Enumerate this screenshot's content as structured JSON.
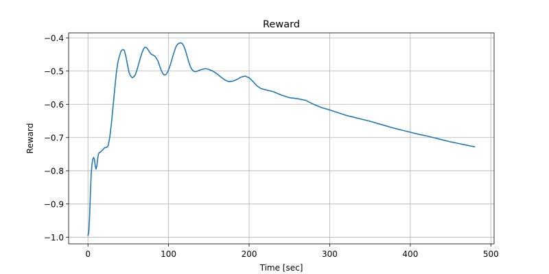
{
  "chart_data": {
    "type": "line",
    "title": "Reward",
    "xlabel": "Time [sec]",
    "ylabel": "Reward",
    "xlim": [
      -24,
      504
    ],
    "ylim": [
      -1.02,
      -0.385
    ],
    "xticks": [
      0,
      100,
      200,
      300,
      400,
      500
    ],
    "xtick_labels": [
      "0",
      "100",
      "200",
      "300",
      "400",
      "500"
    ],
    "yticks": [
      -1.0,
      -0.9,
      -0.8,
      -0.7,
      -0.6,
      -0.5,
      -0.4
    ],
    "ytick_labels": [
      "−1.0",
      "−0.9",
      "−0.8",
      "−0.7",
      "−0.6",
      "−0.5",
      "−0.4"
    ],
    "grid": true,
    "series": [
      {
        "color": "#1f77b4",
        "x": [
          0,
          1,
          2,
          3,
          4,
          5,
          6,
          7,
          8,
          9,
          10,
          11,
          12,
          13,
          14,
          15,
          17,
          19,
          21,
          23,
          25,
          27,
          29,
          31,
          33,
          35,
          37,
          39,
          41,
          43,
          45,
          47,
          49,
          51,
          53,
          55,
          57,
          59,
          61,
          63,
          65,
          67,
          69,
          71,
          73,
          75,
          77,
          79,
          81,
          83,
          85,
          87,
          89,
          91,
          93,
          95,
          97,
          99,
          101,
          103,
          105,
          107,
          109,
          111,
          113,
          115,
          117,
          119,
          121,
          123,
          125,
          127,
          129,
          131,
          133,
          135,
          137,
          139,
          141,
          143,
          145,
          147,
          150,
          155,
          160,
          165,
          170,
          175,
          180,
          185,
          190,
          195,
          200,
          205,
          210,
          215,
          220,
          230,
          240,
          250,
          260,
          270,
          280,
          290,
          300,
          310,
          320,
          330,
          340,
          350,
          360,
          370,
          380,
          390,
          400,
          410,
          420,
          430,
          440,
          450,
          460,
          470,
          480
        ],
        "y": [
          -0.995,
          -0.985,
          -0.94,
          -0.87,
          -0.81,
          -0.78,
          -0.765,
          -0.76,
          -0.765,
          -0.785,
          -0.795,
          -0.785,
          -0.765,
          -0.75,
          -0.745,
          -0.745,
          -0.74,
          -0.735,
          -0.73,
          -0.73,
          -0.725,
          -0.7,
          -0.66,
          -0.61,
          -0.56,
          -0.51,
          -0.475,
          -0.455,
          -0.44,
          -0.435,
          -0.437,
          -0.455,
          -0.48,
          -0.505,
          -0.515,
          -0.52,
          -0.517,
          -0.51,
          -0.495,
          -0.478,
          -0.46,
          -0.445,
          -0.433,
          -0.428,
          -0.43,
          -0.437,
          -0.445,
          -0.45,
          -0.452,
          -0.455,
          -0.462,
          -0.47,
          -0.485,
          -0.498,
          -0.508,
          -0.512,
          -0.51,
          -0.502,
          -0.49,
          -0.475,
          -0.458,
          -0.442,
          -0.428,
          -0.42,
          -0.416,
          -0.415,
          -0.417,
          -0.425,
          -0.438,
          -0.455,
          -0.472,
          -0.486,
          -0.495,
          -0.5,
          -0.502,
          -0.501,
          -0.499,
          -0.497,
          -0.495,
          -0.494,
          -0.493,
          -0.493,
          -0.495,
          -0.5,
          -0.508,
          -0.518,
          -0.527,
          -0.532,
          -0.53,
          -0.525,
          -0.518,
          -0.515,
          -0.52,
          -0.532,
          -0.545,
          -0.553,
          -0.556,
          -0.562,
          -0.572,
          -0.58,
          -0.583,
          -0.588,
          -0.6,
          -0.61,
          -0.617,
          -0.625,
          -0.633,
          -0.639,
          -0.645,
          -0.651,
          -0.658,
          -0.665,
          -0.672,
          -0.678,
          -0.684,
          -0.69,
          -0.695,
          -0.701,
          -0.707,
          -0.713,
          -0.718,
          -0.723,
          -0.728
        ]
      }
    ]
  }
}
